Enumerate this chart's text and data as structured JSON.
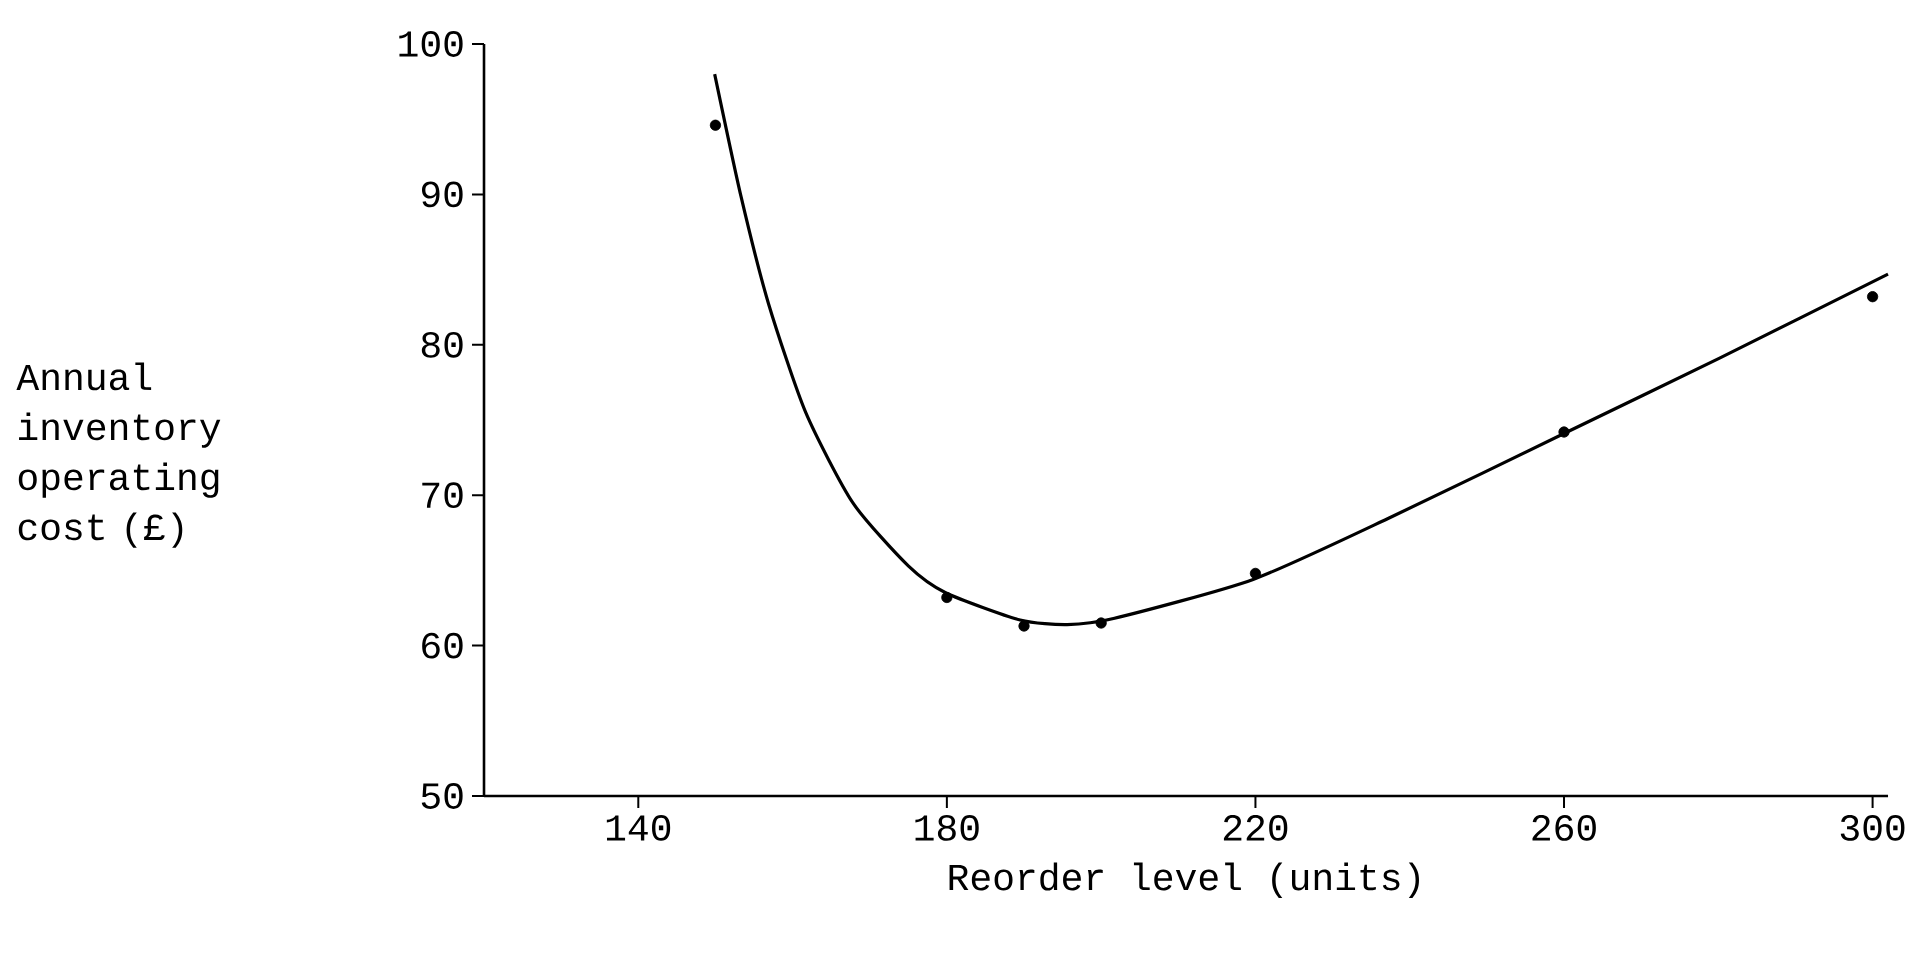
{
  "chart_data": {
    "type": "scatter",
    "xlabel": "Reorder level (units)",
    "ylabel": "Annual inventory operating cost (£)",
    "xlim": [
      120,
      302
    ],
    "ylim": [
      50,
      100
    ],
    "xticks": [
      140,
      180,
      220,
      260,
      300
    ],
    "yticks": [
      50,
      60,
      70,
      80,
      90,
      100
    ],
    "grid": false,
    "series": [
      {
        "color": "#000000",
        "marker": "circle",
        "x": [
          150,
          180,
          190,
          200,
          220,
          260,
          300
        ],
        "values": [
          94.6,
          63.2,
          61.3,
          61.5,
          64.8,
          74.2,
          83.2
        ]
      },
      {
        "type": "line",
        "color": "#000000",
        "marker": "none",
        "line_style": "solid",
        "x": [
          149.9,
          153.3,
          156.9,
          161.7,
          167.8,
          175.0,
          179.9,
          189.5,
          195.6,
          201.6,
          219.7,
          237.8,
          260.8,
          280.1,
          302
        ],
        "values": [
          98.0,
          89.9,
          82.7,
          75.5,
          69.5,
          65.3,
          63.5,
          61.7,
          61.4,
          61.8,
          64.4,
          68.6,
          74.3,
          79.1,
          84.7
        ]
      }
    ]
  }
}
